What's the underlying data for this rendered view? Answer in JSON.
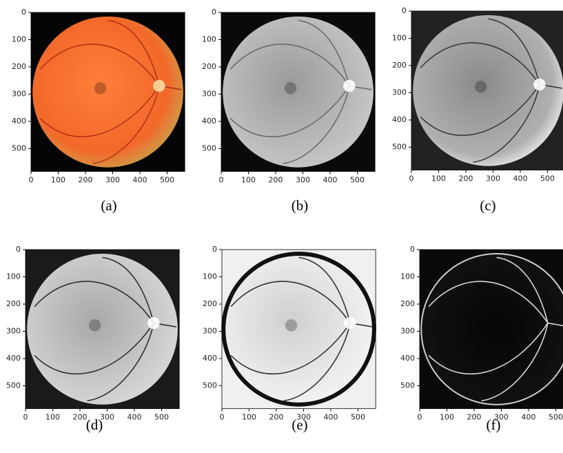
{
  "panels": [
    {
      "caption": "(a)",
      "xticks": [
        0,
        100,
        200,
        300,
        400,
        500
      ],
      "yticks": [
        0,
        100,
        200,
        300,
        400,
        500
      ],
      "xlim": [
        0,
        565
      ],
      "ylim": [
        0,
        584
      ]
    },
    {
      "caption": "(b)",
      "xticks": [
        0,
        100,
        200,
        300,
        400,
        500
      ],
      "yticks": [
        0,
        100,
        200,
        300,
        400,
        500
      ],
      "xlim": [
        0,
        565
      ],
      "ylim": [
        0,
        584
      ]
    },
    {
      "caption": "(c)",
      "xticks": [
        0,
        100,
        200,
        300,
        400,
        500
      ],
      "yticks": [
        0,
        100,
        200,
        300,
        400,
        500
      ],
      "xlim": [
        0,
        565
      ],
      "ylim": [
        0,
        584
      ]
    },
    {
      "caption": "(d)",
      "xticks": [
        0,
        100,
        200,
        300,
        400,
        500
      ],
      "yticks": [
        0,
        100,
        200,
        300,
        400,
        500
      ],
      "xlim": [
        0,
        565
      ],
      "ylim": [
        0,
        584
      ]
    },
    {
      "caption": "(e)",
      "xticks": [
        0,
        100,
        200,
        300,
        400,
        500
      ],
      "yticks": [
        0,
        100,
        200,
        300,
        400,
        500
      ],
      "xlim": [
        0,
        565
      ],
      "ylim": [
        0,
        584
      ]
    },
    {
      "caption": "(f)",
      "xticks": [
        0,
        100,
        200,
        300,
        400,
        500
      ],
      "yticks": [
        0,
        100,
        200,
        300,
        400,
        500
      ],
      "xlim": [
        0,
        565
      ],
      "ylim": [
        0,
        584
      ]
    }
  ]
}
